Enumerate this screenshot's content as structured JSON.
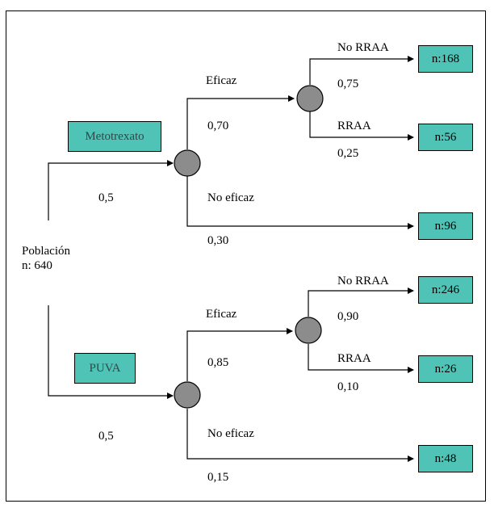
{
  "root": {
    "label_line1": "Población",
    "label_line2": "n: 640"
  },
  "branches": [
    {
      "treatment": "Metotrexato",
      "probability": "0,5",
      "effective": {
        "label": "Eficaz",
        "probability": "0,70"
      },
      "not_effective": {
        "label": "No eficaz",
        "probability": "0,30",
        "outcome": "n:96"
      },
      "no_rraa": {
        "label": "No RRAA",
        "probability": "0,75",
        "outcome": "n:168"
      },
      "rraa": {
        "label": "RRAA",
        "probability": "0,25",
        "outcome": "n:56"
      }
    },
    {
      "treatment": "PUVA",
      "probability": "0,5",
      "effective": {
        "label": "Eficaz",
        "probability": "0,85"
      },
      "not_effective": {
        "label": "No eficaz",
        "probability": "0,15",
        "outcome": "n:48"
      },
      "no_rraa": {
        "label": "No RRAA",
        "probability": "0,90",
        "outcome": "n:246"
      },
      "rraa": {
        "label": "RRAA",
        "probability": "0,10",
        "outcome": "n:26"
      }
    }
  ],
  "colors": {
    "outcome_box": "#4ec3b6",
    "chance_node": "#8c8c8c",
    "line": "#000000"
  }
}
